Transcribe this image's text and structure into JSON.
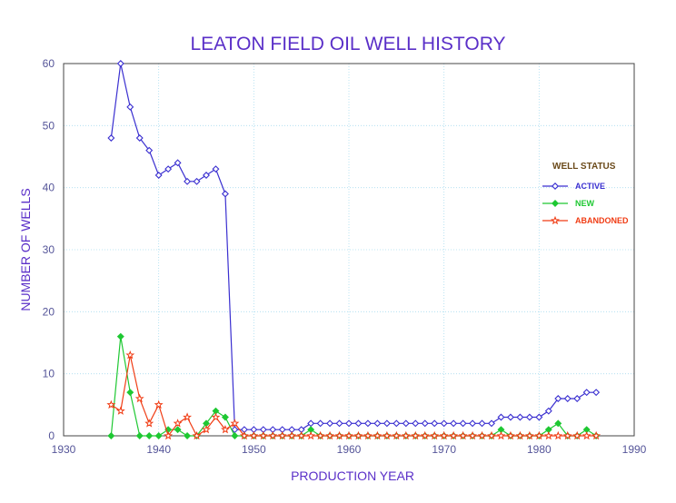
{
  "chart_data": {
    "type": "line",
    "title": "LEATON FIELD OIL WELL HISTORY",
    "xlabel": "PRODUCTION YEAR",
    "ylabel": "NUMBER OF WELLS",
    "xlim": [
      1930,
      1990
    ],
    "ylim": [
      0,
      60
    ],
    "xticks": [
      1930,
      1940,
      1950,
      1960,
      1970,
      1980,
      1990
    ],
    "yticks": [
      0,
      10,
      20,
      30,
      40,
      50,
      60
    ],
    "grid": true,
    "legend": {
      "title": "WELL STATUS",
      "placement": "right"
    },
    "series": [
      {
        "name": "ACTIVE",
        "color": "#3a2fd0",
        "marker": "diamond-open",
        "x": [
          1935,
          1936,
          1937,
          1938,
          1939,
          1940,
          1941,
          1942,
          1943,
          1944,
          1945,
          1946,
          1947,
          1948,
          1949,
          1950,
          1951,
          1952,
          1953,
          1954,
          1955,
          1956,
          1957,
          1958,
          1959,
          1960,
          1961,
          1962,
          1963,
          1964,
          1965,
          1966,
          1967,
          1968,
          1969,
          1970,
          1971,
          1972,
          1973,
          1974,
          1975,
          1976,
          1977,
          1978,
          1979,
          1980,
          1981,
          1982,
          1983,
          1984,
          1985,
          1986
        ],
        "values": [
          48,
          60,
          53,
          48,
          46,
          42,
          43,
          44,
          41,
          41,
          42,
          43,
          39,
          1,
          1,
          1,
          1,
          1,
          1,
          1,
          1,
          2,
          2,
          2,
          2,
          2,
          2,
          2,
          2,
          2,
          2,
          2,
          2,
          2,
          2,
          2,
          2,
          2,
          2,
          2,
          2,
          3,
          3,
          3,
          3,
          3,
          4,
          6,
          6,
          6,
          7,
          7
        ]
      },
      {
        "name": "NEW",
        "color": "#1ec832",
        "marker": "diamond-filled",
        "x": [
          1935,
          1936,
          1937,
          1938,
          1939,
          1940,
          1941,
          1942,
          1943,
          1944,
          1945,
          1946,
          1947,
          1948,
          1949,
          1950,
          1951,
          1952,
          1953,
          1954,
          1955,
          1956,
          1957,
          1958,
          1959,
          1960,
          1961,
          1962,
          1963,
          1964,
          1965,
          1966,
          1967,
          1968,
          1969,
          1970,
          1971,
          1972,
          1973,
          1974,
          1975,
          1976,
          1977,
          1978,
          1979,
          1980,
          1981,
          1982,
          1983,
          1984,
          1985,
          1986
        ],
        "values": [
          0,
          16,
          7,
          0,
          0,
          0,
          1,
          1,
          0,
          0,
          2,
          4,
          3,
          0,
          0,
          0,
          0,
          0,
          0,
          0,
          0,
          1,
          0,
          0,
          0,
          0,
          0,
          0,
          0,
          0,
          0,
          0,
          0,
          0,
          0,
          0,
          0,
          0,
          0,
          0,
          0,
          1,
          0,
          0,
          0,
          0,
          1,
          2,
          0,
          0,
          1,
          0
        ]
      },
      {
        "name": "ABANDONED",
        "color": "#f03c14",
        "marker": "star-open",
        "x": [
          1935,
          1936,
          1937,
          1938,
          1939,
          1940,
          1941,
          1942,
          1943,
          1944,
          1945,
          1946,
          1947,
          1948,
          1949,
          1950,
          1951,
          1952,
          1953,
          1954,
          1955,
          1956,
          1957,
          1958,
          1959,
          1960,
          1961,
          1962,
          1963,
          1964,
          1965,
          1966,
          1967,
          1968,
          1969,
          1970,
          1971,
          1972,
          1973,
          1974,
          1975,
          1976,
          1977,
          1978,
          1979,
          1980,
          1981,
          1982,
          1983,
          1984,
          1985,
          1986
        ],
        "values": [
          5,
          4,
          13,
          6,
          2,
          5,
          0,
          2,
          3,
          0,
          1,
          3,
          1,
          2,
          0,
          0,
          0,
          0,
          0,
          0,
          0,
          0,
          0,
          0,
          0,
          0,
          0,
          0,
          0,
          0,
          0,
          0,
          0,
          0,
          0,
          0,
          0,
          0,
          0,
          0,
          0,
          0,
          0,
          0,
          0,
          0,
          0,
          0,
          0,
          0,
          0,
          0
        ]
      }
    ]
  }
}
